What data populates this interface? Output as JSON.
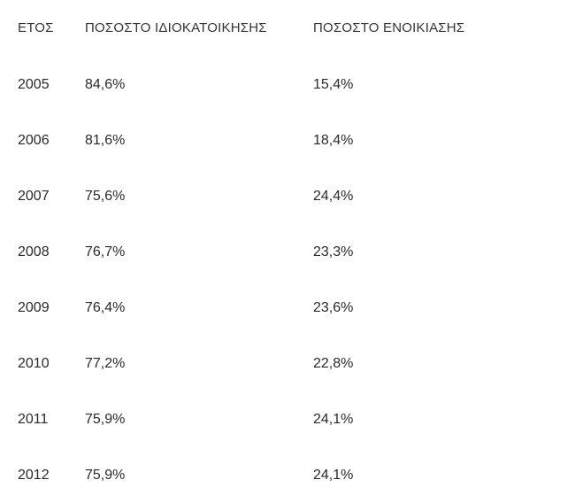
{
  "table": {
    "headers": {
      "year": "ΕΤΟΣ",
      "ownership": "ΠΟΣΟΣΤΟ ΙΔΙΟΚΑΤΟΙΚΗΣΗΣ",
      "rental": "ΠΟΣΟΣΤΟ ΕΝΟΙΚΙΑΣΗΣ"
    },
    "rows": [
      {
        "year": "2005",
        "ownership": "84,6%",
        "rental": "15,4%"
      },
      {
        "year": "2006",
        "ownership": "81,6%",
        "rental": "18,4%"
      },
      {
        "year": "2007",
        "ownership": "75,6%",
        "rental": "24,4%"
      },
      {
        "year": "2008",
        "ownership": "76,7%",
        "rental": "23,3%"
      },
      {
        "year": "2009",
        "ownership": "76,4%",
        "rental": "23,6%"
      },
      {
        "year": "2010",
        "ownership": "77,2%",
        "rental": "22,8%"
      },
      {
        "year": "2011",
        "ownership": "75,9%",
        "rental": "24,1%"
      },
      {
        "year": "2012",
        "ownership": "75,9%",
        "rental": "24,1%"
      }
    ]
  }
}
